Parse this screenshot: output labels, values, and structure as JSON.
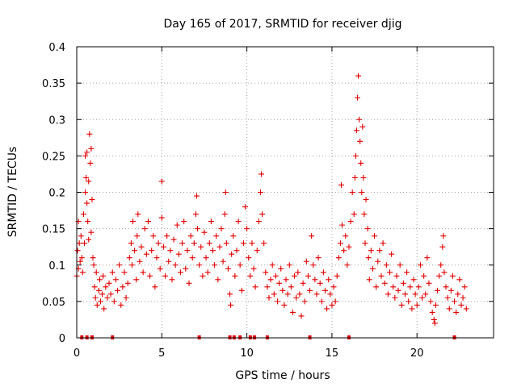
{
  "chart_data": {
    "type": "scatter",
    "title": "Day 165 of 2017, SRMTID for receiver djig",
    "xlabel": "GPS time / hours",
    "ylabel": "SRMTID / TECUs",
    "xlim": [
      0,
      24.5
    ],
    "ylim": [
      0,
      0.4
    ],
    "x_ticks": [
      0,
      5,
      10,
      15,
      20
    ],
    "x_tick_labels": [
      "0",
      "5",
      "10",
      "15",
      "20"
    ],
    "y_ticks": [
      0,
      0.05,
      0.1,
      0.15,
      0.2,
      0.25,
      0.3,
      0.35,
      0.4
    ],
    "y_tick_labels": [
      "0",
      "0.05",
      "0.1",
      "0.15",
      "0.2",
      "0.25",
      "0.3",
      "0.35",
      "0.4"
    ],
    "grid": true,
    "marker": "plus",
    "series_color": "#e00000",
    "series": [
      {
        "name": "SRMTID",
        "points": [
          [
            0.0,
            0.085
          ],
          [
            0.05,
            0.12
          ],
          [
            0.1,
            0.16
          ],
          [
            0.1,
            0.095
          ],
          [
            0.15,
            0.13
          ],
          [
            0.2,
            0.105
          ],
          [
            0.25,
            0.14
          ],
          [
            0.3,
            0.11
          ],
          [
            0.35,
            0.09
          ],
          [
            0.4,
            0.17
          ],
          [
            0.45,
            0.13
          ],
          [
            0.5,
            0.2
          ],
          [
            0.5,
            0.25
          ],
          [
            0.55,
            0.22
          ],
          [
            0.6,
            0.185
          ],
          [
            0.6,
            0.255
          ],
          [
            0.65,
            0.16
          ],
          [
            0.7,
            0.135
          ],
          [
            0.7,
            0.215
          ],
          [
            0.75,
            0.28
          ],
          [
            0.8,
            0.24
          ],
          [
            0.85,
            0.26
          ],
          [
            0.85,
            0.145
          ],
          [
            0.9,
            0.19
          ],
          [
            0.95,
            0.11
          ],
          [
            1.0,
            0.1
          ],
          [
            1.05,
            0.07
          ],
          [
            1.1,
            0.055
          ],
          [
            1.15,
            0.09
          ],
          [
            1.2,
            0.045
          ],
          [
            1.3,
            0.065
          ],
          [
            1.35,
            0.08
          ],
          [
            1.4,
            0.05
          ],
          [
            1.5,
            0.06
          ],
          [
            1.55,
            0.085
          ],
          [
            1.6,
            0.04
          ],
          [
            1.7,
            0.07
          ],
          [
            1.8,
            0.055
          ],
          [
            1.9,
            0.075
          ],
          [
            2.0,
            0.06
          ],
          [
            2.1,
            0.09
          ],
          [
            2.2,
            0.05
          ],
          [
            2.3,
            0.08
          ],
          [
            2.4,
            0.065
          ],
          [
            2.5,
            0.1
          ],
          [
            2.6,
            0.045
          ],
          [
            2.7,
            0.07
          ],
          [
            2.8,
            0.09
          ],
          [
            2.9,
            0.055
          ],
          [
            3.0,
            0.075
          ],
          [
            3.1,
            0.11
          ],
          [
            3.2,
            0.13
          ],
          [
            3.25,
            0.1
          ],
          [
            3.3,
            0.16
          ],
          [
            3.4,
            0.12
          ],
          [
            3.5,
            0.08
          ],
          [
            3.55,
            0.14
          ],
          [
            3.6,
            0.17
          ],
          [
            3.7,
            0.105
          ],
          [
            3.8,
            0.125
          ],
          [
            3.9,
            0.09
          ],
          [
            4.0,
            0.15
          ],
          [
            4.1,
            0.115
          ],
          [
            4.2,
            0.16
          ],
          [
            4.3,
            0.085
          ],
          [
            4.4,
            0.12
          ],
          [
            4.5,
            0.14
          ],
          [
            4.6,
            0.07
          ],
          [
            4.7,
            0.11
          ],
          [
            4.8,
            0.13
          ],
          [
            4.9,
            0.095
          ],
          [
            5.0,
            0.165
          ],
          [
            5.0,
            0.215
          ],
          [
            5.1,
            0.125
          ],
          [
            5.2,
            0.085
          ],
          [
            5.3,
            0.14
          ],
          [
            5.4,
            0.105
          ],
          [
            5.5,
            0.12
          ],
          [
            5.6,
            0.08
          ],
          [
            5.7,
            0.135
          ],
          [
            5.8,
            0.1
          ],
          [
            5.9,
            0.155
          ],
          [
            6.0,
            0.115
          ],
          [
            6.1,
            0.09
          ],
          [
            6.2,
            0.13
          ],
          [
            6.3,
            0.16
          ],
          [
            6.4,
            0.095
          ],
          [
            6.5,
            0.12
          ],
          [
            6.6,
            0.075
          ],
          [
            6.7,
            0.14
          ],
          [
            6.8,
            0.11
          ],
          [
            6.9,
            0.13
          ],
          [
            7.0,
            0.17
          ],
          [
            7.05,
            0.195
          ],
          [
            7.1,
            0.15
          ],
          [
            7.2,
            0.1
          ],
          [
            7.3,
            0.125
          ],
          [
            7.4,
            0.085
          ],
          [
            7.5,
            0.145
          ],
          [
            7.6,
            0.11
          ],
          [
            7.7,
            0.09
          ],
          [
            7.8,
            0.13
          ],
          [
            7.9,
            0.16
          ],
          [
            8.0,
            0.12
          ],
          [
            8.1,
            0.1
          ],
          [
            8.2,
            0.14
          ],
          [
            8.3,
            0.08
          ],
          [
            8.4,
            0.125
          ],
          [
            8.5,
            0.15
          ],
          [
            8.6,
            0.105
          ],
          [
            8.7,
            0.17
          ],
          [
            8.75,
            0.2
          ],
          [
            8.8,
            0.13
          ],
          [
            8.9,
            0.095
          ],
          [
            9.0,
            0.06
          ],
          [
            9.05,
            0.045
          ],
          [
            9.1,
            0.115
          ],
          [
            9.2,
            0.14
          ],
          [
            9.3,
            0.085
          ],
          [
            9.4,
            0.12
          ],
          [
            9.5,
            0.16
          ],
          [
            9.6,
            0.1
          ],
          [
            9.7,
            0.065
          ],
          [
            9.8,
            0.13
          ],
          [
            9.9,
            0.18
          ],
          [
            10.0,
            0.15
          ],
          [
            10.1,
            0.11
          ],
          [
            10.2,
            0.085
          ],
          [
            10.3,
            0.13
          ],
          [
            10.4,
            0.095
          ],
          [
            10.5,
            0.07
          ],
          [
            10.6,
            0.12
          ],
          [
            10.7,
            0.16
          ],
          [
            10.8,
            0.2
          ],
          [
            10.85,
            0.225
          ],
          [
            10.9,
            0.17
          ],
          [
            11.0,
            0.13
          ],
          [
            11.1,
            0.09
          ],
          [
            11.2,
            0.07
          ],
          [
            11.3,
            0.055
          ],
          [
            11.4,
            0.08
          ],
          [
            11.5,
            0.1
          ],
          [
            11.6,
            0.06
          ],
          [
            11.7,
            0.085
          ],
          [
            11.8,
            0.05
          ],
          [
            11.9,
            0.075
          ],
          [
            12.0,
            0.095
          ],
          [
            12.1,
            0.065
          ],
          [
            12.2,
            0.045
          ],
          [
            12.3,
            0.08
          ],
          [
            12.4,
            0.06
          ],
          [
            12.5,
            0.1
          ],
          [
            12.6,
            0.07
          ],
          [
            12.7,
            0.035
          ],
          [
            12.8,
            0.085
          ],
          [
            12.9,
            0.055
          ],
          [
            13.0,
            0.09
          ],
          [
            13.1,
            0.06
          ],
          [
            13.2,
            0.03
          ],
          [
            13.3,
            0.075
          ],
          [
            13.4,
            0.05
          ],
          [
            13.5,
            0.105
          ],
          [
            13.6,
            0.085
          ],
          [
            13.7,
            0.065
          ],
          [
            13.8,
            0.14
          ],
          [
            13.9,
            0.1
          ],
          [
            14.0,
            0.08
          ],
          [
            14.1,
            0.06
          ],
          [
            14.2,
            0.11
          ],
          [
            14.3,
            0.075
          ],
          [
            14.4,
            0.05
          ],
          [
            14.5,
            0.09
          ],
          [
            14.6,
            0.065
          ],
          [
            14.7,
            0.04
          ],
          [
            14.8,
            0.08
          ],
          [
            14.9,
            0.06
          ],
          [
            15.0,
            0.045
          ],
          [
            15.1,
            0.07
          ],
          [
            15.2,
            0.05
          ],
          [
            15.3,
            0.085
          ],
          [
            15.4,
            0.11
          ],
          [
            15.5,
            0.13
          ],
          [
            15.55,
            0.21
          ],
          [
            15.6,
            0.155
          ],
          [
            15.7,
            0.12
          ],
          [
            15.8,
            0.14
          ],
          [
            15.9,
            0.1
          ],
          [
            16.0,
            0.125
          ],
          [
            16.1,
            0.16
          ],
          [
            16.2,
            0.2
          ],
          [
            16.3,
            0.17
          ],
          [
            16.35,
            0.22
          ],
          [
            16.4,
            0.25
          ],
          [
            16.45,
            0.285
          ],
          [
            16.5,
            0.33
          ],
          [
            16.55,
            0.36
          ],
          [
            16.6,
            0.3
          ],
          [
            16.65,
            0.27
          ],
          [
            16.7,
            0.24
          ],
          [
            16.75,
            0.2
          ],
          [
            16.8,
            0.29
          ],
          [
            16.85,
            0.22
          ],
          [
            16.9,
            0.17
          ],
          [
            16.95,
            0.13
          ],
          [
            17.0,
            0.19
          ],
          [
            17.1,
            0.15
          ],
          [
            17.15,
            0.11
          ],
          [
            17.2,
            0.08
          ],
          [
            17.3,
            0.12
          ],
          [
            17.4,
            0.095
          ],
          [
            17.5,
            0.14
          ],
          [
            17.6,
            0.07
          ],
          [
            17.7,
            0.105
          ],
          [
            17.8,
            0.12
          ],
          [
            17.9,
            0.085
          ],
          [
            18.0,
            0.13
          ],
          [
            18.1,
            0.075
          ],
          [
            18.2,
            0.1
          ],
          [
            18.3,
            0.06
          ],
          [
            18.4,
            0.09
          ],
          [
            18.5,
            0.115
          ],
          [
            18.6,
            0.07
          ],
          [
            18.7,
            0.055
          ],
          [
            18.8,
            0.085
          ],
          [
            18.9,
            0.065
          ],
          [
            19.0,
            0.1
          ],
          [
            19.1,
            0.045
          ],
          [
            19.2,
            0.075
          ],
          [
            19.3,
            0.06
          ],
          [
            19.4,
            0.09
          ],
          [
            19.5,
            0.05
          ],
          [
            19.6,
            0.07
          ],
          [
            19.7,
            0.04
          ],
          [
            19.8,
            0.08
          ],
          [
            19.9,
            0.06
          ],
          [
            20.0,
            0.045
          ],
          [
            20.1,
            0.07
          ],
          [
            20.2,
            0.1
          ],
          [
            20.3,
            0.055
          ],
          [
            20.4,
            0.085
          ],
          [
            20.5,
            0.06
          ],
          [
            20.6,
            0.11
          ],
          [
            20.7,
            0.075
          ],
          [
            20.8,
            0.05
          ],
          [
            20.9,
            0.035
          ],
          [
            21.0,
            0.025
          ],
          [
            21.05,
            0.02
          ],
          [
            21.1,
            0.045
          ],
          [
            21.2,
            0.065
          ],
          [
            21.3,
            0.085
          ],
          [
            21.4,
            0.1
          ],
          [
            21.5,
            0.125
          ],
          [
            21.55,
            0.14
          ],
          [
            21.6,
            0.09
          ],
          [
            21.7,
            0.07
          ],
          [
            21.8,
            0.055
          ],
          [
            21.9,
            0.04
          ],
          [
            22.0,
            0.065
          ],
          [
            22.1,
            0.085
          ],
          [
            22.2,
            0.05
          ],
          [
            22.3,
            0.035
          ],
          [
            22.4,
            0.06
          ],
          [
            22.5,
            0.08
          ],
          [
            22.6,
            0.045
          ],
          [
            22.7,
            0.055
          ],
          [
            22.8,
            0.07
          ],
          [
            22.9,
            0.04
          ]
        ]
      }
    ],
    "gap_markers_x": [
      0.3,
      0.6,
      0.9,
      2.1,
      7.2,
      9.0,
      9.25,
      9.6,
      10.2,
      10.45,
      11.2,
      13.7,
      16.0,
      22.2
    ]
  }
}
